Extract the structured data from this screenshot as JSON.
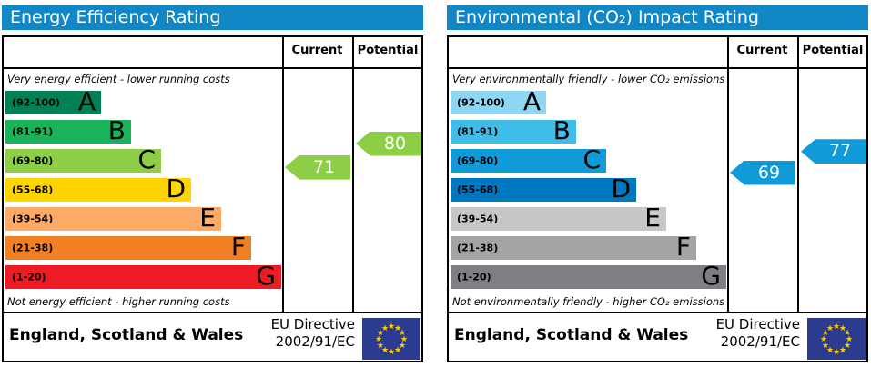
{
  "page": {
    "background": "#ffffff"
  },
  "colors": {
    "header_bar": "#1287c6",
    "border": "#000000",
    "eu_flag_blue": "#2b3c90",
    "eu_star_yellow": "#ffcc00"
  },
  "table_headers": {
    "current": "Current",
    "potential": "Potential"
  },
  "footer": {
    "region": "England, Scotland & Wales",
    "directive_line1": "EU Directive",
    "directive_line2": "2002/91/EC"
  },
  "chart_data": [
    {
      "type": "bar",
      "title": "Energy Efficiency Rating",
      "top_caption": "Very energy efficient - lower running costs",
      "bottom_caption": "Not energy efficient - higher running costs",
      "columns": [
        "Current",
        "Potential"
      ],
      "current": {
        "value": 71,
        "band": "C",
        "color": "#8dce46"
      },
      "potential": {
        "value": 80,
        "band": "C",
        "color": "#8dce46"
      },
      "bands": [
        {
          "letter": "A",
          "label": "(92-100)",
          "min": 92,
          "max": 100,
          "color": "#008054"
        },
        {
          "letter": "B",
          "label": "(81-91)",
          "min": 81,
          "max": 91,
          "color": "#19b459"
        },
        {
          "letter": "C",
          "label": "(69-80)",
          "min": 69,
          "max": 80,
          "color": "#8dce46"
        },
        {
          "letter": "D",
          "label": "(55-68)",
          "min": 55,
          "max": 68,
          "color": "#ffd500"
        },
        {
          "letter": "E",
          "label": "(39-54)",
          "min": 39,
          "max": 54,
          "color": "#fcaa65"
        },
        {
          "letter": "F",
          "label": "(21-38)",
          "min": 21,
          "max": 38,
          "color": "#ef8023"
        },
        {
          "letter": "G",
          "label": "(1-20)",
          "min": 1,
          "max": 20,
          "color": "#ed1c24"
        }
      ]
    },
    {
      "type": "bar",
      "title": "Environmental (CO₂) Impact Rating",
      "top_caption": "Very environmentally friendly - lower CO₂ emissions",
      "bottom_caption": "Not environmentally friendly - higher CO₂ emissions",
      "columns": [
        "Current",
        "Potential"
      ],
      "current": {
        "value": 69,
        "band": "C",
        "color": "#0f9ad8"
      },
      "potential": {
        "value": 77,
        "band": "C",
        "color": "#0f9ad8"
      },
      "bands": [
        {
          "letter": "A",
          "label": "(92-100)",
          "min": 92,
          "max": 100,
          "color": "#8fd6f3"
        },
        {
          "letter": "B",
          "label": "(81-91)",
          "min": 81,
          "max": 91,
          "color": "#3fbde8"
        },
        {
          "letter": "C",
          "label": "(69-80)",
          "min": 69,
          "max": 80,
          "color": "#0f9ad8"
        },
        {
          "letter": "D",
          "label": "(55-68)",
          "min": 55,
          "max": 68,
          "color": "#0077c1"
        },
        {
          "letter": "E",
          "label": "(39-54)",
          "min": 39,
          "max": 54,
          "color": "#c6c7c9"
        },
        {
          "letter": "F",
          "label": "(21-38)",
          "min": 21,
          "max": 38,
          "color": "#a2a4a6"
        },
        {
          "letter": "G",
          "label": "(1-20)",
          "min": 1,
          "max": 20,
          "color": "#7d7f82"
        }
      ]
    }
  ]
}
